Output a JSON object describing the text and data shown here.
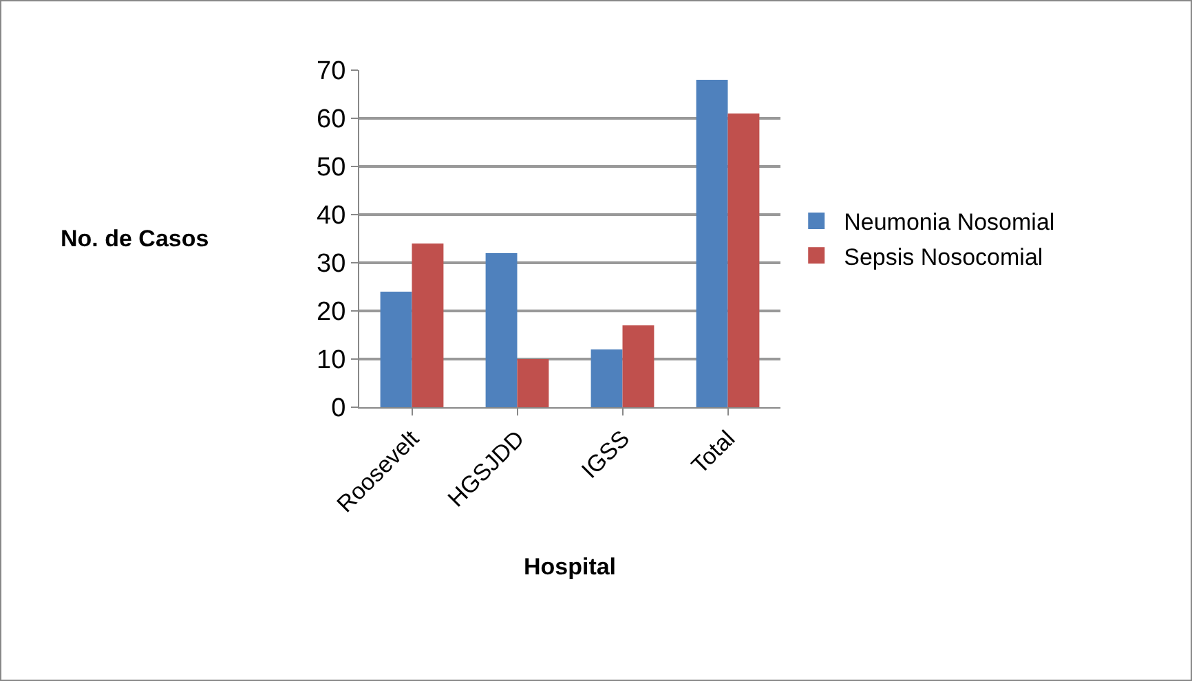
{
  "chart_data": {
    "type": "bar",
    "xlabel": "Hospital",
    "ylabel": "No. de Casos",
    "categories": [
      "Roosevelt",
      "HGSJDD",
      "IGSS",
      "Total"
    ],
    "series": [
      {
        "name": "Neumonia Nosomial",
        "color": "#4f81bd",
        "values": [
          24,
          32,
          12,
          68
        ]
      },
      {
        "name": "Sepsis Nosocomial",
        "color": "#c0504d",
        "values": [
          34,
          10,
          17,
          61
        ]
      }
    ],
    "ylim": [
      0,
      70
    ],
    "yticks": [
      0,
      10,
      20,
      30,
      40,
      50,
      60,
      70
    ],
    "grid": "y",
    "legend": "right"
  }
}
